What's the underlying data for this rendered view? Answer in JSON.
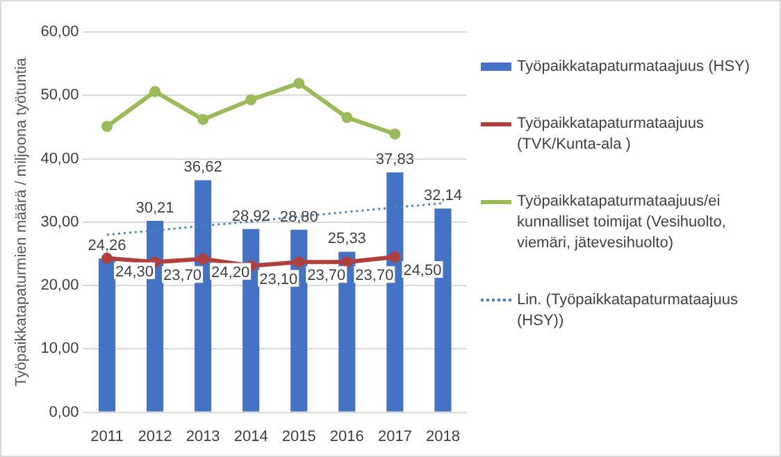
{
  "chart_data": {
    "type": "bar",
    "ylabel": "Työpaikkatapaturmien määrä / miljoona työtuntia",
    "categories": [
      "2011",
      "2012",
      "2013",
      "2014",
      "2015",
      "2016",
      "2017",
      "2018"
    ],
    "series": [
      {
        "name": "Työpaikkatapaturmataajuus (HSY)",
        "color": "#4472c4",
        "values": [
          24.26,
          30.21,
          36.62,
          28.92,
          28.8,
          25.33,
          37.83,
          32.14
        ],
        "value_labels": [
          "24,26",
          "30,21",
          "36,62",
          "28,92",
          "28,80",
          "25,33",
          "37,83",
          "32,14"
        ]
      },
      {
        "name": "Työpaikkatapaturmataajuus (TVK/Kunta-ala )",
        "type": "line",
        "color": "#b0403d",
        "marker": "circle",
        "values": [
          24.3,
          23.7,
          24.2,
          23.1,
          23.7,
          23.7,
          24.5,
          null
        ],
        "value_labels": [
          "24,30",
          "23,70",
          "24,20",
          "23,10",
          "23,70",
          "23,70",
          "24,50",
          null
        ]
      },
      {
        "name": "Työpaikkatapaturmataajuus/ei kunnalliset toimijat (Vesihuolto, viemäri, jätevesihuolto)",
        "type": "line",
        "color": "#9bbb59",
        "marker": "circle",
        "values": [
          45.1,
          50.6,
          46.2,
          49.3,
          51.9,
          46.5,
          43.9,
          null
        ]
      },
      {
        "name": "Lin. (Työpaikkatapaturmataajuus (HSY))",
        "type": "line",
        "color": "#4f81bd",
        "marker": "none",
        "line_style": "dotted",
        "values": [
          28.0,
          28.7,
          29.4,
          30.1,
          30.9,
          31.6,
          32.3,
          33.0
        ]
      }
    ],
    "ylim": [
      0,
      60
    ],
    "yticks": [
      {
        "value": 0,
        "label": "0,00"
      },
      {
        "value": 10,
        "label": "10,00"
      },
      {
        "value": 20,
        "label": "20,00"
      },
      {
        "value": 30,
        "label": "30,00"
      },
      {
        "value": 40,
        "label": "40,00"
      },
      {
        "value": 50,
        "label": "50,00"
      },
      {
        "value": 60,
        "label": "60,00"
      }
    ],
    "grid": "y",
    "legend": "right"
  }
}
